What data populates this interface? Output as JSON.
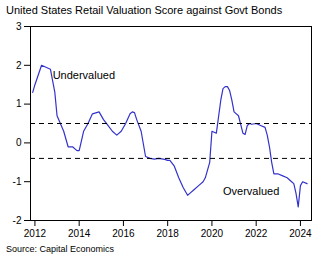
{
  "chart_data": {
    "type": "line",
    "title": "United States Retail Valuation Score against Govt Bonds",
    "source": "Source: Capital Economics",
    "color": "#3333cc",
    "grid": false,
    "reference_lines": [
      {
        "y": 0.5,
        "color": "black",
        "line_style": "dashed"
      },
      {
        "y": -0.4,
        "color": "black",
        "line_style": "dashed"
      }
    ],
    "annotations": [
      {
        "text": "Undervalued",
        "x": 2012.8,
        "y": 1.65
      },
      {
        "text": "Overvalued",
        "x": 2020.5,
        "y": -1.35
      }
    ],
    "xlim": [
      2011.8,
      2024.5
    ],
    "ylim": [
      -2,
      3
    ],
    "xticks": [
      2012,
      2014,
      2016,
      2018,
      2020,
      2022,
      2024
    ],
    "yticks": [
      -2,
      -1,
      0,
      1,
      2,
      3
    ],
    "x": [
      2011.9,
      2012.0,
      2012.3,
      2012.7,
      2012.9,
      2013.0,
      2013.3,
      2013.5,
      2013.7,
      2013.9,
      2014.0,
      2014.2,
      2014.4,
      2014.6,
      2014.9,
      2015.1,
      2015.3,
      2015.5,
      2015.7,
      2015.9,
      2016.1,
      2016.3,
      2016.4,
      2016.5,
      2016.6,
      2016.8,
      2017.0,
      2017.2,
      2017.4,
      2017.6,
      2017.8,
      2017.9,
      2018.0,
      2018.1,
      2018.3,
      2018.5,
      2018.7,
      2018.9,
      2019.0,
      2019.2,
      2019.4,
      2019.6,
      2019.7,
      2019.8,
      2019.9,
      2020.0,
      2020.2,
      2020.4,
      2020.5,
      2020.6,
      2020.7,
      2020.8,
      2020.9,
      2021.0,
      2021.2,
      2021.4,
      2021.5,
      2021.6,
      2021.7,
      2021.8,
      2022.0,
      2022.2,
      2022.4,
      2022.5,
      2022.6,
      2022.7,
      2022.8,
      2023.0,
      2023.2,
      2023.4,
      2023.6,
      2023.7,
      2023.8,
      2023.9,
      2024.0,
      2024.1,
      2024.3
    ],
    "values": [
      1.3,
      1.5,
      2.0,
      1.9,
      1.3,
      0.7,
      0.3,
      -0.1,
      -0.1,
      -0.2,
      -0.2,
      0.3,
      0.5,
      0.75,
      0.8,
      0.6,
      0.45,
      0.3,
      0.2,
      0.3,
      0.5,
      0.75,
      0.8,
      0.78,
      0.6,
      0.3,
      -0.35,
      -0.4,
      -0.42,
      -0.4,
      -0.42,
      -0.43,
      -0.45,
      -0.45,
      -0.6,
      -0.9,
      -1.15,
      -1.35,
      -1.3,
      -1.2,
      -1.1,
      -1.0,
      -0.9,
      -0.7,
      -0.5,
      0.3,
      0.25,
      1.1,
      1.4,
      1.45,
      1.45,
      1.35,
      1.1,
      0.8,
      0.7,
      0.25,
      0.22,
      0.45,
      0.5,
      0.48,
      0.5,
      0.45,
      0.4,
      0.2,
      -0.1,
      -0.5,
      -0.8,
      -0.8,
      -0.85,
      -0.9,
      -1.0,
      -1.05,
      -1.3,
      -1.65,
      -1.1,
      -1.0,
      -1.05
    ]
  }
}
